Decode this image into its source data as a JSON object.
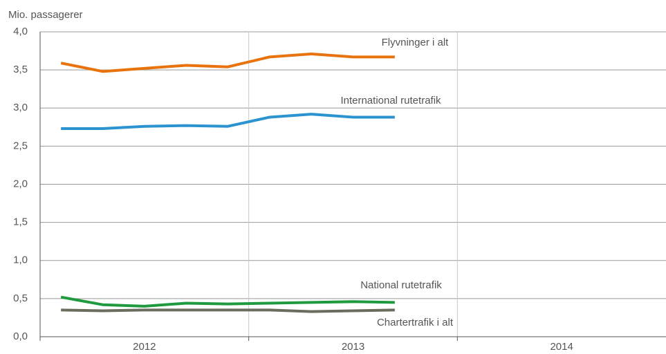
{
  "chart_data": {
    "type": "line",
    "y_label": "Mio. passagerer",
    "categories": [
      null,
      null,
      null,
      null,
      null,
      null,
      null,
      null,
      null
    ],
    "x_groups": [
      "2012",
      "2013",
      "2014"
    ],
    "series": [
      {
        "name": "Flyvninger i alt",
        "color": "#e8730c",
        "values": [
          3.59,
          3.48,
          3.52,
          3.56,
          3.54,
          3.67,
          3.71,
          3.67,
          3.67
        ]
      },
      {
        "name": "International rutetrafik",
        "color": "#2a93d0",
        "values": [
          2.73,
          2.73,
          2.76,
          2.77,
          2.76,
          2.88,
          2.92,
          2.88,
          2.88
        ]
      },
      {
        "name": "National rutetrafik",
        "color": "#1f9a3e",
        "values": [
          0.52,
          0.42,
          0.4,
          0.44,
          0.43,
          0.44,
          0.45,
          0.46,
          0.45
        ]
      },
      {
        "name": "Chartertrafik i alt",
        "color": "#6b6b5e",
        "values": [
          0.35,
          0.34,
          0.35,
          0.35,
          0.35,
          0.35,
          0.33,
          0.34,
          0.35
        ]
      }
    ],
    "ylim": [
      0,
      4
    ],
    "yticks": [
      {
        "value": 0,
        "label": "0,0"
      },
      {
        "value": 0.5,
        "label": "0,5"
      },
      {
        "value": 1,
        "label": "1,0"
      },
      {
        "value": 1.5,
        "label": "1,5"
      },
      {
        "value": 2,
        "label": "2,0"
      },
      {
        "value": 2.5,
        "label": "2,5"
      },
      {
        "value": 3,
        "label": "3,0"
      },
      {
        "value": 3.5,
        "label": "3,5"
      },
      {
        "value": 4,
        "label": "4,0"
      }
    ],
    "grid": true
  }
}
